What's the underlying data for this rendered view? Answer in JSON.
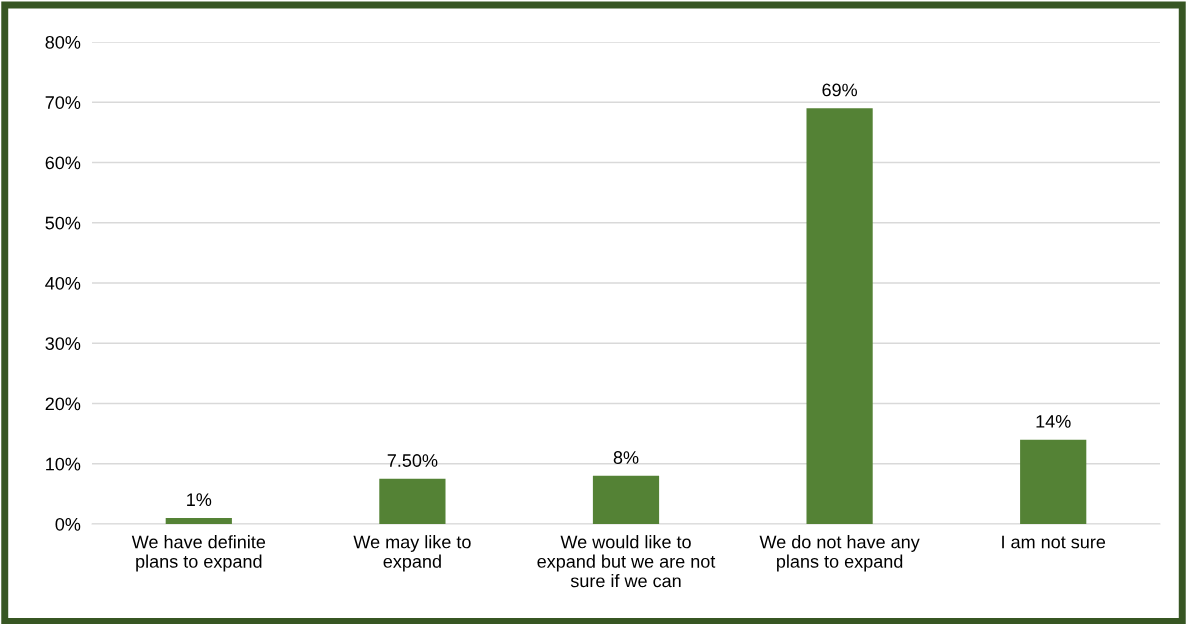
{
  "chart_data": {
    "type": "bar",
    "categories": [
      "We have definite\nplans to expand",
      "We may like to\nexpand",
      "We would like to\nexpand but we are not\nsure if we can",
      "We do not have any\nplans to expand",
      "I am not sure"
    ],
    "values": [
      1,
      7.5,
      8,
      69,
      14
    ],
    "value_labels": [
      "1%",
      "7.50%",
      "8%",
      "69%",
      "14%"
    ],
    "color": "#548235",
    "ylim": [
      0,
      80
    ],
    "yticks": [
      {
        "value": 0,
        "label": "0%"
      },
      {
        "value": 10,
        "label": "10%"
      },
      {
        "value": 20,
        "label": "20%"
      },
      {
        "value": 30,
        "label": "30%"
      },
      {
        "value": 40,
        "label": "40%"
      },
      {
        "value": 50,
        "label": "50%"
      },
      {
        "value": 60,
        "label": "60%"
      },
      {
        "value": 70,
        "label": "70%"
      },
      {
        "value": 80,
        "label": "80%"
      }
    ],
    "grid": "y",
    "legend": false
  }
}
